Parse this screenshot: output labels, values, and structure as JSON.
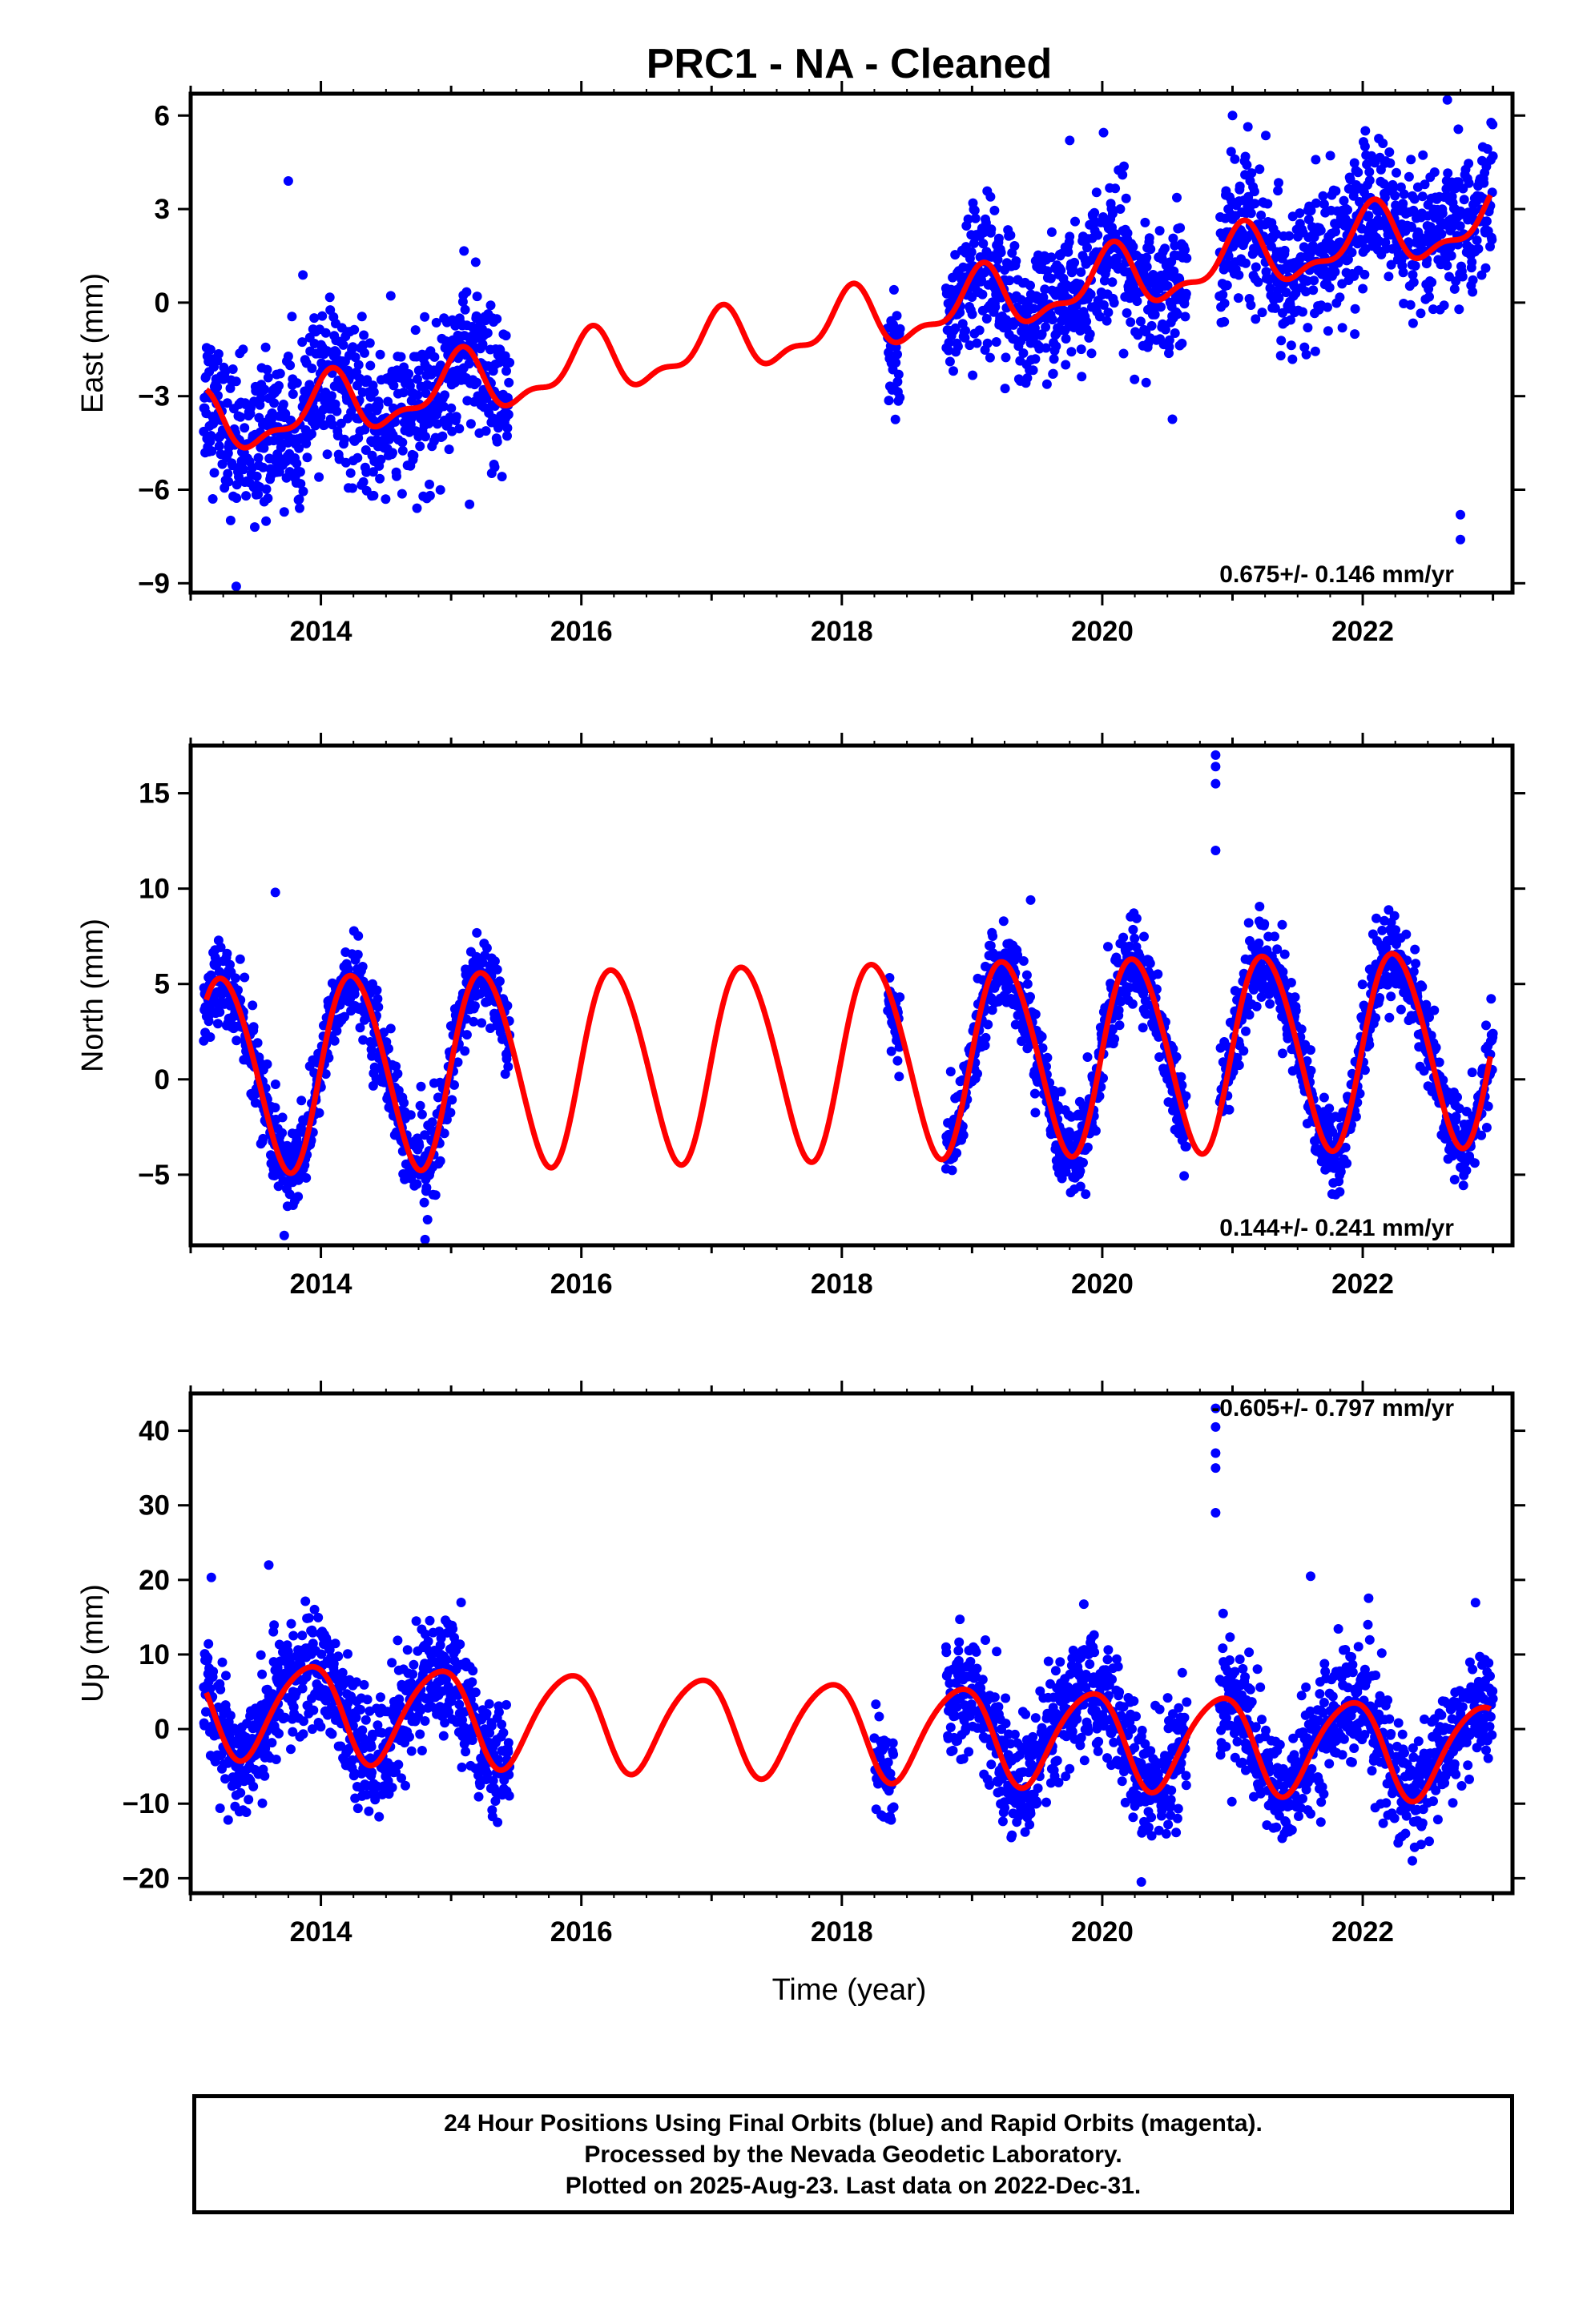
{
  "title": "PRC1  - NA - Cleaned",
  "x_axis_label": "Time (year)",
  "footer": {
    "line1": "24 Hour Positions Using Final Orbits (blue) and Rapid Orbits (magenta).",
    "line2": "Processed by the Nevada Geodetic Laboratory.",
    "line3": "Plotted on 2025-Aug-23. Last data on 2022-Dec-31."
  },
  "colors": {
    "final_orbits": "#0000ff",
    "rapid_orbits": "#ff00ff",
    "model": "#ff0000",
    "frame": "#000000"
  },
  "chart_data": [
    {
      "type": "scatter",
      "name": "east",
      "ylabel": "East (mm)",
      "xlabel": "",
      "rate_label": "0.675+/- 0.146 mm/yr",
      "xlim": [
        2013.0,
        2023.15
      ],
      "ylim": [
        -9.3,
        6.7
      ],
      "x_ticks": [
        2014,
        2016,
        2018,
        2020,
        2022
      ],
      "y_ticks": [
        -9,
        -6,
        -3,
        0,
        3,
        6
      ],
      "trend": {
        "intercept_at_2013": -4.1,
        "slope": 0.675,
        "annual_amp": 0.9,
        "annual_phase": 1.2,
        "semiannual_amp": 0.4,
        "semiannual_phase": 0.3
      },
      "data_segments": [
        {
          "start": 2013.1,
          "end": 2015.45,
          "mean": -3.4,
          "spread": 1.2
        },
        {
          "start": 2018.35,
          "end": 2018.45,
          "mean": -1.5,
          "spread": 1.2
        },
        {
          "start": 2018.8,
          "end": 2020.65,
          "mean": 0.4,
          "spread": 1.1
        },
        {
          "start": 2020.9,
          "end": 2023.0,
          "mean": 2.1,
          "spread": 1.1
        }
      ],
      "outliers": [
        [
          2013.75,
          3.9
        ],
        [
          2013.35,
          -9.1
        ],
        [
          2022.75,
          -7.6
        ],
        [
          2022.75,
          -6.8
        ],
        [
          2022.65,
          6.5
        ],
        [
          2021.0,
          6.0
        ],
        [
          2019.75,
          5.2
        ]
      ],
      "annotations": [
        "0.675+/- 0.146 mm/yr"
      ]
    },
    {
      "type": "scatter",
      "name": "north",
      "ylabel": "North (mm)",
      "xlabel": "",
      "rate_label": "0.144+/- 0.241 mm/yr",
      "xlim": [
        2013.0,
        2023.15
      ],
      "ylim": [
        -8.7,
        17.5
      ],
      "x_ticks": [
        2014,
        2016,
        2018,
        2020,
        2022
      ],
      "y_ticks": [
        -5,
        0,
        5,
        10,
        15
      ],
      "trend": {
        "intercept_at_2013": 0.3,
        "slope": 0.144,
        "annual_amp": 5.1,
        "annual_phase": 0.0,
        "semiannual_amp": 0.4,
        "semiannual_phase": 0.5
      },
      "data_segments": [
        {
          "start": 2013.1,
          "end": 2015.45,
          "mean": 0.3,
          "spread": 1.1
        },
        {
          "start": 2018.35,
          "end": 2018.45,
          "mean": 0.5,
          "spread": 1.1
        },
        {
          "start": 2018.8,
          "end": 2020.65,
          "mean": 0.9,
          "spread": 1.1
        },
        {
          "start": 2020.9,
          "end": 2023.0,
          "mean": 1.6,
          "spread": 1.1
        }
      ],
      "outliers": [
        [
          2020.87,
          17.0
        ],
        [
          2020.87,
          16.4
        ],
        [
          2020.87,
          15.5
        ],
        [
          2020.87,
          12.0
        ],
        [
          2014.8,
          -8.4
        ],
        [
          2013.65,
          9.8
        ],
        [
          2019.45,
          9.4
        ]
      ],
      "annotations": [
        "0.144+/- 0.241 mm/yr"
      ]
    },
    {
      "type": "scatter",
      "name": "up",
      "ylabel": "Up (mm)",
      "xlabel": "Time (year)",
      "rate_label": "-0.605+/- 0.797 mm/yr",
      "xlim": [
        2013.0,
        2023.15
      ],
      "ylim": [
        -22,
        45
      ],
      "x_ticks": [
        2014,
        2016,
        2018,
        2020,
        2022
      ],
      "y_ticks": [
        -20,
        -10,
        0,
        10,
        20,
        30,
        40
      ],
      "trend": {
        "intercept_at_2013": 3.0,
        "slope": -0.605,
        "annual_amp": 6.4,
        "annual_phase": 2.2,
        "semiannual_amp": 0.8,
        "semiannual_phase": 0.4
      },
      "data_segments": [
        {
          "start": 2013.1,
          "end": 2015.45,
          "mean": 2.5,
          "spread": 4.0
        },
        {
          "start": 2018.25,
          "end": 2018.4,
          "mean": 0.5,
          "spread": 3.5
        },
        {
          "start": 2018.8,
          "end": 2020.65,
          "mean": -0.5,
          "spread": 4.0
        },
        {
          "start": 2020.9,
          "end": 2023.0,
          "mean": -1.5,
          "spread": 4.0
        }
      ],
      "outliers": [
        [
          2020.87,
          43.0
        ],
        [
          2020.87,
          40.5
        ],
        [
          2020.87,
          37.0
        ],
        [
          2020.87,
          35.0
        ],
        [
          2020.87,
          29.0
        ],
        [
          2020.3,
          -20.5
        ],
        [
          2013.6,
          22.0
        ],
        [
          2021.6,
          20.5
        ]
      ],
      "annotations": [
        "-0.605+/- 0.797 mm/yr"
      ]
    }
  ]
}
